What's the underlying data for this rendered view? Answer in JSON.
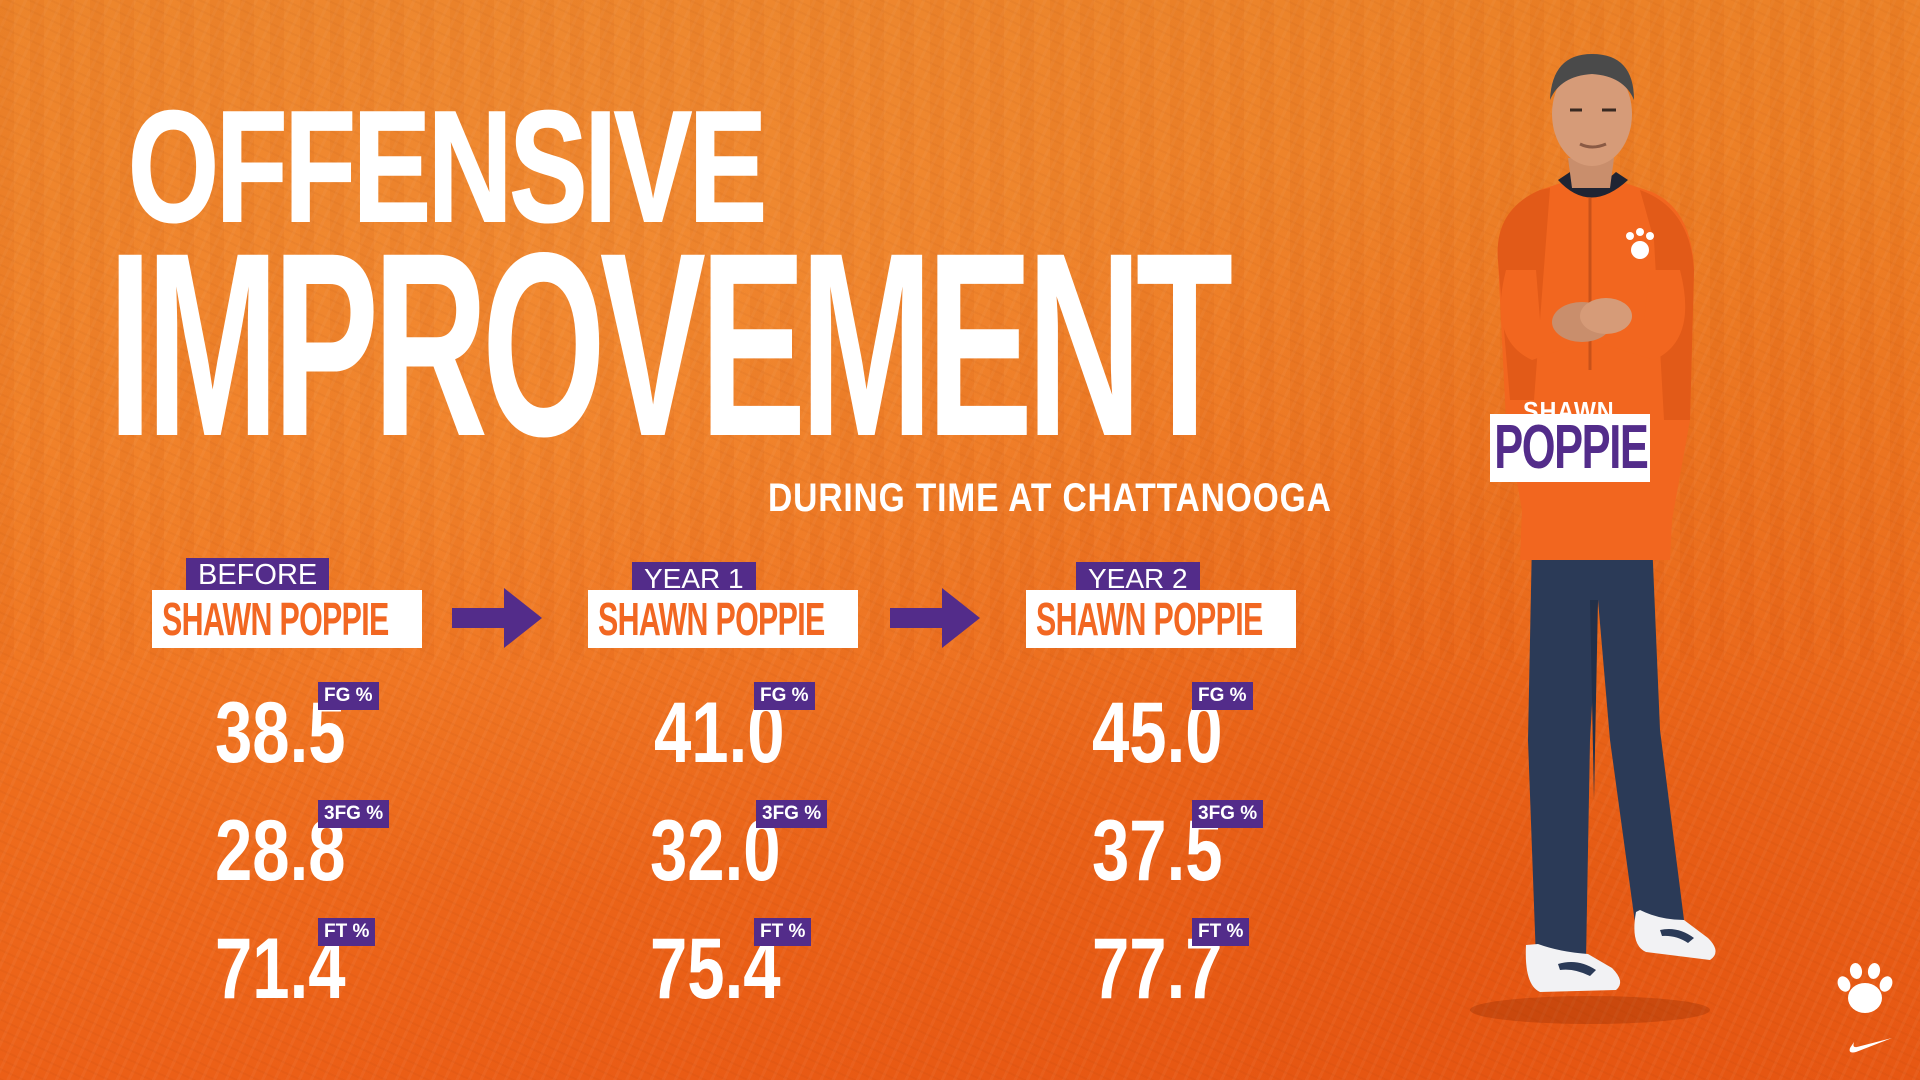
{
  "title": {
    "line1": "OFFENSIVE",
    "line2": "IMPROVEMENT",
    "subtitle": "DURING TIME AT CHATTANOOGA"
  },
  "colors": {
    "background": "#f07a22",
    "accent_purple": "#532c8a",
    "name_orange": "#f26722",
    "text_white": "#ffffff"
  },
  "columns": [
    {
      "tag": "BEFORE",
      "name": "SHAWN POPPIE",
      "stats": [
        {
          "value": "38.5",
          "label": "FG %"
        },
        {
          "value": "28.8",
          "label": "3FG %"
        },
        {
          "value": "71.4",
          "label": "FT %"
        }
      ]
    },
    {
      "tag": "YEAR 1",
      "name": "SHAWN POPPIE",
      "stats": [
        {
          "value": "41.0",
          "label": "FG %"
        },
        {
          "value": "32.0",
          "label": "3FG %"
        },
        {
          "value": "75.4",
          "label": "FT %"
        }
      ]
    },
    {
      "tag": "YEAR 2",
      "name": "SHAWN POPPIE",
      "stats": [
        {
          "value": "45.0",
          "label": "FG %"
        },
        {
          "value": "37.5",
          "label": "3FG %"
        },
        {
          "value": "77.7",
          "label": "FT %"
        }
      ]
    }
  ],
  "coach": {
    "first_name": "SHAWN",
    "last_name": "POPPIE"
  },
  "icons": {
    "arrow": "right-arrow-icon",
    "team_logo": "paw-logo-icon",
    "brand_logo": "swoosh-logo-icon"
  }
}
